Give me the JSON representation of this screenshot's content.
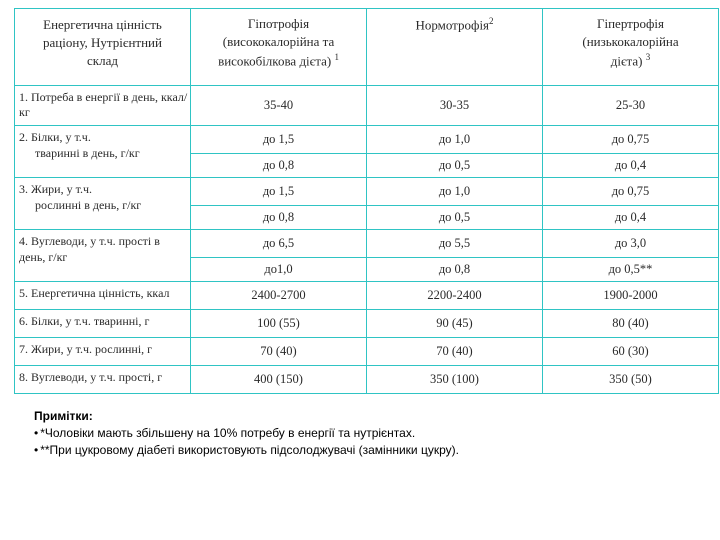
{
  "table": {
    "headers": {
      "c1a": "Енергетична цінність",
      "c1b": "раціону, Нутрієнтний",
      "c1c": "склад",
      "c2a": "Гіпотрофія",
      "c2b": "(висококалорійна та",
      "c2c": "високобілкова дієта) ",
      "c2sup": "1",
      "c3": "Нормотрофія",
      "c3sup": "2",
      "c4a": "Гіпертрофія",
      "c4b": "(низькокалорійна",
      "c4c": "дієта) ",
      "c4sup": "3"
    },
    "rows": {
      "r1": {
        "label": "1.  Потреба в енергії в день, ккал/кг",
        "v1": "35-40",
        "v2": "30-35",
        "v3": "25-30"
      },
      "r2": {
        "label": "2.  Білки, у т.ч.",
        "sub": "тваринні в день, г/кг",
        "v1": "до 1,5",
        "v2": "до 1,0",
        "v3": "до 0,75"
      },
      "r2b": {
        "v1": "до 0,8",
        "v2": "до 0,5",
        "v3": "до 0,4"
      },
      "r3": {
        "label": "3.  Жири, у т.ч.",
        "sub": "рослинні в день, г/кг",
        "v1": "до 1,5",
        "v2": "до 1,0",
        "v3": "до 0,75"
      },
      "r3b": {
        "v1": "до 0,8",
        "v2": "до 0,5",
        "v3": "до 0,4"
      },
      "r4": {
        "label": "4.  Вуглеводи, у т.ч. прості в день, г/кг",
        "v1": "до 6,5",
        "v2": "до 5,5",
        "v3": "до 3,0"
      },
      "r4b": {
        "v1": "до1,0",
        "v2": "до 0,8",
        "v3": "до 0,5**"
      },
      "r5": {
        "label": "5.  Енергетична цінність, ккал",
        "v1": "2400-2700",
        "v2": "2200-2400",
        "v3": "1900-2000"
      },
      "r6": {
        "label": "6.  Білки, у т.ч. тваринні, г",
        "v1": "100 (55)",
        "v2": "90 (45)",
        "v3": "80 (40)"
      },
      "r7": {
        "label": "7.  Жири, у т.ч. рослинні, г",
        "v1": "70 (40)",
        "v2": "70 (40)",
        "v3": "60 (30)"
      },
      "r8": {
        "label": "8.  Вуглеводи, у т.ч. прості, г",
        "v1": "400 (150)",
        "v2": "350 (100)",
        "v3": "350 (50)"
      }
    }
  },
  "notes": {
    "title": "Примітки:",
    "n1": "*Чоловіки мають збільшену на 10% потребу в енергії та нутрієнтах.",
    "n2": "**При цукровому діабеті  використовують підсолоджувачі (замінники цукру)."
  },
  "colors": {
    "border": "#2fc4c4",
    "text": "#2a2a2a",
    "background": "#ffffff"
  }
}
